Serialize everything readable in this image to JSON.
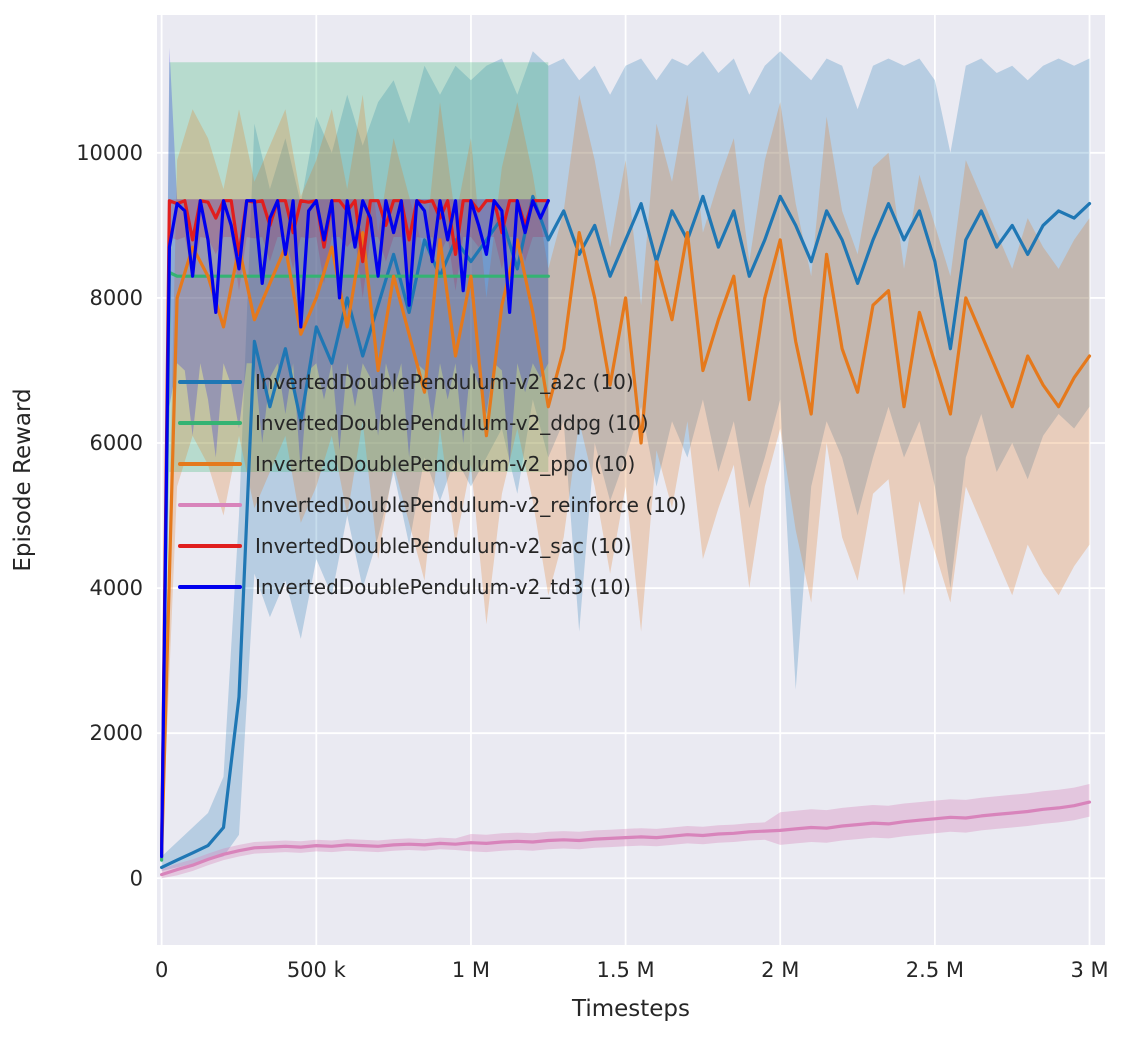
{
  "chart_data": {
    "type": "line",
    "title": "",
    "xlabel": "Timesteps",
    "ylabel": "Episode Reward",
    "xlim": [
      -15000,
      3050000
    ],
    "ylim": [
      -920,
      11900
    ],
    "grid": true,
    "legend_position": "upper-left-inside",
    "plot_bg": "#eaeaf2",
    "grid_color": "#ffffff",
    "text_color": "#262626",
    "x_ticks": {
      "values": [
        0,
        500000,
        1000000,
        1500000,
        2000000,
        2500000,
        3000000
      ],
      "labels": [
        "0",
        "500 k",
        "1 M",
        "1.5 M",
        "2 M",
        "2.5 M",
        "3 M"
      ]
    },
    "y_ticks": {
      "values": [
        0,
        2000,
        4000,
        6000,
        8000,
        10000
      ],
      "labels": [
        "0",
        "2000",
        "4000",
        "6000",
        "8000",
        "10000"
      ]
    },
    "series": [
      {
        "id": "a2c",
        "label": "InvertedDoublePendulum-v2_a2c (10)",
        "color": "#1f77b4",
        "band_alpha": 0.25,
        "x_start": 0,
        "x_step": 50000,
        "y": [
          150,
          250,
          350,
          450,
          700,
          2500,
          7400,
          6500,
          7300,
          6300,
          7600,
          7100,
          8000,
          7200,
          7900,
          8600,
          7800,
          8800,
          8300,
          8800,
          8500,
          8800,
          9100,
          8400,
          9400,
          8800,
          9200,
          8600,
          9000,
          8300,
          8800,
          9300,
          8500,
          9200,
          8800,
          9400,
          8700,
          9200,
          8300,
          8800,
          9400,
          9000,
          8500,
          9200,
          8800,
          8200,
          8800,
          9300,
          8800,
          9200,
          8500,
          7300,
          8800,
          9200,
          8700,
          9000,
          8600,
          9000,
          9200,
          9100,
          9300
        ],
        "lo": [
          100,
          150,
          200,
          250,
          300,
          600,
          4200,
          3600,
          4100,
          3300,
          4400,
          3900,
          5000,
          4000,
          4700,
          5600,
          4600,
          5800,
          5200,
          5800,
          5400,
          5800,
          6200,
          5300,
          6600,
          5800,
          6300,
          3400,
          6000,
          5200,
          5800,
          6500,
          5400,
          6300,
          5800,
          6600,
          5600,
          6300,
          5100,
          5800,
          6600,
          2600,
          5400,
          6300,
          5800,
          5000,
          5800,
          6500,
          5800,
          6300,
          5400,
          4000,
          5800,
          6400,
          5600,
          6000,
          5500,
          6100,
          6400,
          6200,
          6500
        ],
        "hi": [
          300,
          500,
          700,
          900,
          1400,
          5000,
          10400,
          9500,
          10200,
          9300,
          10500,
          10000,
          10800,
          10100,
          10700,
          11000,
          10400,
          11200,
          10800,
          11200,
          11000,
          11200,
          11300,
          10800,
          11400,
          11200,
          11300,
          11000,
          11200,
          10800,
          11200,
          11300,
          11000,
          11300,
          11200,
          11400,
          11100,
          11300,
          10800,
          11200,
          11400,
          11200,
          11000,
          11300,
          11200,
          10600,
          11200,
          11300,
          11200,
          11300,
          11000,
          10000,
          11200,
          11300,
          11100,
          11200,
          11000,
          11200,
          11300,
          11200,
          11300
        ]
      },
      {
        "id": "ddpg",
        "label": "InvertedDoublePendulum-v2_ddpg (10)",
        "color": "#34b373",
        "band_alpha": 0.28,
        "x_start": 0,
        "x_step": 25000,
        "y": [
          250,
          8350,
          8300,
          8300,
          8300,
          8300,
          8300,
          8300,
          8300,
          8300,
          8300,
          8300,
          8300,
          8300,
          8300,
          8300,
          8300,
          8300,
          8300,
          8300,
          8300,
          8300,
          8300,
          8300,
          8300,
          8300,
          8300,
          8300,
          8300,
          8300,
          8300,
          8300,
          8300,
          8300,
          8300,
          8300,
          8300,
          8300,
          8300,
          8300,
          8300,
          8300,
          8300,
          8300,
          8300,
          8300,
          8300,
          8300,
          8300,
          8300,
          8300
        ],
        "lo": [
          200,
          5600,
          5600,
          5600,
          5600,
          5600,
          5600,
          5600,
          5600,
          5600,
          5600,
          5600,
          5600,
          5600,
          5600,
          5600,
          5600,
          5600,
          5600,
          5600,
          5600,
          5600,
          5600,
          5600,
          5600,
          5600,
          5600,
          5600,
          5600,
          5600,
          5600,
          5600,
          5600,
          5600,
          5600,
          5600,
          5600,
          5600,
          5600,
          5600,
          5600,
          5600,
          5600,
          5600,
          5600,
          5600,
          5600,
          5600,
          5600,
          5600,
          5600
        ],
        "hi": [
          300,
          11250,
          11250,
          11250,
          11250,
          11250,
          11250,
          11250,
          11250,
          11250,
          11250,
          11250,
          11250,
          11250,
          11250,
          11250,
          11250,
          11250,
          11250,
          11250,
          11250,
          11250,
          11250,
          11250,
          11250,
          11250,
          11250,
          11250,
          11250,
          11250,
          11250,
          11250,
          11250,
          11250,
          11250,
          11250,
          11250,
          11250,
          11250,
          11250,
          11250,
          11250,
          11250,
          11250,
          11250,
          11250,
          11250,
          11250,
          11250,
          11250,
          11250
        ]
      },
      {
        "id": "ppo",
        "label": "InvertedDoublePendulum-v2_ppo (10)",
        "color": "#e5791c",
        "band_alpha": 0.25,
        "x_start": 0,
        "x_step": 50000,
        "y": [
          300,
          8000,
          8700,
          8300,
          7600,
          8700,
          7700,
          8200,
          8700,
          7500,
          8000,
          8700,
          7600,
          8900,
          7000,
          8300,
          7500,
          6700,
          8800,
          7200,
          8300,
          6100,
          7900,
          8800,
          7800,
          6500,
          7300,
          8900,
          8000,
          6800,
          8000,
          6000,
          8500,
          7700,
          8900,
          7000,
          7700,
          8300,
          6600,
          8000,
          8800,
          7400,
          6400,
          8600,
          7300,
          6700,
          7900,
          8100,
          6500,
          7800,
          7100,
          6400,
          8000,
          7500,
          7000,
          6500,
          7200,
          6800,
          6500,
          6900,
          7200
        ],
        "lo": [
          200,
          5400,
          6100,
          5700,
          5000,
          6100,
          5100,
          5600,
          6100,
          4900,
          5400,
          6100,
          5000,
          6300,
          4400,
          5700,
          4900,
          4100,
          6200,
          4600,
          5700,
          3500,
          5300,
          6200,
          5200,
          3900,
          4700,
          6300,
          5400,
          4200,
          5400,
          3400,
          5900,
          5100,
          6300,
          4400,
          5100,
          5700,
          4000,
          5400,
          6200,
          4800,
          3800,
          6000,
          4700,
          4100,
          5300,
          5500,
          3900,
          5200,
          4500,
          3800,
          5400,
          4900,
          4400,
          3900,
          4600,
          4200,
          3900,
          4300,
          4600
        ],
        "hi": [
          400,
          9900,
          10600,
          10200,
          9500,
          10600,
          9600,
          10100,
          10600,
          9400,
          9900,
          10600,
          9500,
          10800,
          8900,
          10200,
          9400,
          8600,
          10700,
          9100,
          10200,
          8000,
          9800,
          10700,
          9700,
          8400,
          9200,
          10800,
          9900,
          8700,
          9900,
          7900,
          10400,
          9600,
          10800,
          8900,
          9600,
          10200,
          8500,
          9900,
          10700,
          9300,
          8300,
          10500,
          9200,
          8600,
          9800,
          10000,
          8400,
          9700,
          9000,
          8300,
          9900,
          9400,
          8900,
          8400,
          9100,
          8700,
          8400,
          8800,
          9100
        ]
      },
      {
        "id": "reinforce",
        "label": "InvertedDoublePendulum-v2_reinforce (10)",
        "color": "#d884bb",
        "band_alpha": 0.35,
        "x_start": 0,
        "x_step": 50000,
        "y": [
          50,
          120,
          180,
          260,
          330,
          380,
          420,
          430,
          440,
          430,
          450,
          440,
          460,
          450,
          440,
          460,
          470,
          460,
          480,
          470,
          490,
          480,
          500,
          510,
          500,
          520,
          530,
          520,
          540,
          550,
          560,
          570,
          560,
          580,
          600,
          590,
          610,
          620,
          640,
          650,
          660,
          680,
          700,
          690,
          720,
          740,
          760,
          750,
          780,
          800,
          820,
          840,
          830,
          860,
          880,
          900,
          920,
          950,
          970,
          1000,
          1050
        ],
        "lo": [
          0,
          40,
          100,
          180,
          250,
          300,
          340,
          350,
          360,
          350,
          370,
          360,
          380,
          370,
          360,
          380,
          390,
          380,
          400,
          390,
          370,
          360,
          380,
          390,
          380,
          400,
          410,
          400,
          420,
          430,
          440,
          450,
          440,
          460,
          480,
          470,
          490,
          500,
          520,
          530,
          460,
          480,
          500,
          490,
          520,
          540,
          560,
          550,
          580,
          600,
          620,
          640,
          630,
          660,
          680,
          700,
          720,
          750,
          770,
          800,
          850
        ],
        "hi": [
          130,
          200,
          260,
          340,
          410,
          460,
          500,
          510,
          520,
          510,
          530,
          520,
          540,
          530,
          520,
          540,
          550,
          540,
          560,
          550,
          610,
          600,
          620,
          630,
          620,
          640,
          650,
          640,
          660,
          670,
          680,
          690,
          680,
          700,
          720,
          710,
          730,
          740,
          760,
          770,
          910,
          930,
          950,
          940,
          970,
          990,
          1010,
          1000,
          1030,
          1050,
          1070,
          1090,
          1080,
          1110,
          1130,
          1150,
          1170,
          1200,
          1220,
          1250,
          1300
        ]
      },
      {
        "id": "sac",
        "label": "InvertedDoublePendulum-v2_sac (10)",
        "color": "#e01e1e",
        "band_alpha": 0.2,
        "x_start": 0,
        "x_step": 25000,
        "y": [
          350,
          9340,
          9300,
          9340,
          8800,
          9340,
          9320,
          9100,
          9340,
          9340,
          8600,
          9340,
          9320,
          9340,
          9000,
          9340,
          9340,
          8900,
          9340,
          9320,
          9340,
          8700,
          9340,
          9340,
          9200,
          9340,
          8500,
          9340,
          9340,
          9000,
          9340,
          9340,
          8800,
          9340,
          9320,
          9340,
          9100,
          9340,
          8600,
          9340,
          9340,
          9200,
          9340,
          9340,
          8900,
          9340,
          9340,
          9000,
          9340,
          9340,
          9340
        ],
        "lo": [
          250,
          8840,
          8800,
          8840,
          8300,
          8840,
          8820,
          8600,
          8840,
          8840,
          8100,
          8840,
          8820,
          8840,
          8500,
          8840,
          8840,
          8400,
          8840,
          8820,
          8840,
          8200,
          8840,
          8840,
          8700,
          8840,
          8000,
          8840,
          8840,
          8500,
          8840,
          8840,
          8300,
          8840,
          8820,
          8840,
          8600,
          8840,
          8100,
          8840,
          8840,
          8700,
          8840,
          8840,
          8400,
          8840,
          8840,
          8500,
          8840,
          8840,
          8840
        ],
        "hi": [
          450,
          9360,
          9360,
          9360,
          9360,
          9360,
          9360,
          9360,
          9360,
          9360,
          9360,
          9360,
          9360,
          9360,
          9360,
          9360,
          9360,
          9360,
          9360,
          9360,
          9360,
          9360,
          9360,
          9360,
          9360,
          9360,
          9360,
          9360,
          9360,
          9360,
          9360,
          9360,
          9360,
          9360,
          9360,
          9360,
          9360,
          9360,
          9360,
          9360,
          9360,
          9360,
          9360,
          9360,
          9360,
          9360,
          9360,
          9360,
          9360,
          9360,
          9360
        ]
      },
      {
        "id": "td3",
        "label": "InvertedDoublePendulum-v2_td3 (10)",
        "color": "#0000ee",
        "band_alpha": 0.22,
        "x_start": 0,
        "x_step": 25000,
        "y": [
          300,
          8700,
          9300,
          9200,
          8300,
          9340,
          8800,
          7800,
          9340,
          9000,
          8400,
          9340,
          9340,
          8200,
          9100,
          9340,
          8600,
          9340,
          7600,
          9200,
          9340,
          8800,
          9340,
          8000,
          9340,
          8700,
          9340,
          9100,
          8300,
          9340,
          8900,
          9340,
          7900,
          9340,
          9200,
          8500,
          9340,
          8800,
          9340,
          8100,
          9340,
          9000,
          8600,
          9340,
          9200,
          7800,
          9340,
          8900,
          9340,
          9100,
          9340
        ],
        "lo": [
          150,
          6500,
          7100,
          7000,
          6100,
          7100,
          6600,
          5800,
          7100,
          6800,
          6200,
          7100,
          7100,
          6000,
          6900,
          7100,
          6400,
          7100,
          5600,
          7000,
          7100,
          6600,
          7100,
          5900,
          7100,
          6500,
          7100,
          6900,
          6100,
          7100,
          6700,
          7100,
          5800,
          7100,
          7000,
          6300,
          7100,
          6600,
          7100,
          6000,
          7100,
          6800,
          6400,
          7100,
          7000,
          5700,
          7100,
          6700,
          7100,
          6900,
          7100
        ],
        "hi": [
          450,
          11450,
          9360,
          9360,
          9360,
          9360,
          9360,
          9360,
          9360,
          9360,
          9360,
          9360,
          9360,
          9360,
          9360,
          9360,
          9360,
          9360,
          9360,
          9360,
          9360,
          9360,
          9360,
          9360,
          9360,
          9360,
          9360,
          9360,
          9360,
          9360,
          9360,
          9360,
          9360,
          9360,
          9360,
          9360,
          9360,
          9360,
          9360,
          9360,
          9360,
          9360,
          9360,
          9360,
          9360,
          9360,
          9360,
          9360,
          9360,
          9360,
          9360
        ]
      }
    ]
  }
}
